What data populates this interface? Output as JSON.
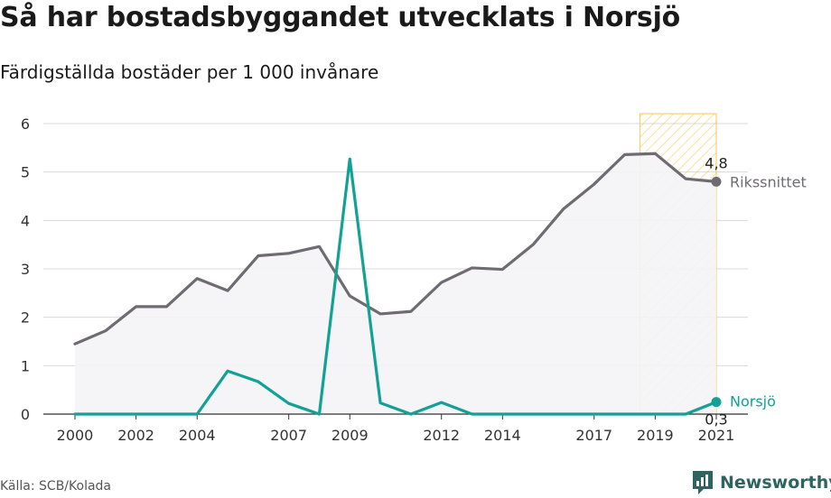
{
  "title": "Så har bostadsbyggandet utvecklats i Norsjö",
  "subtitle": "Färdigställda bostäder per 1 000 invånare",
  "source": "Källa: SCB/Kolada",
  "brand": {
    "name": "Newsworthy",
    "icon": "newsworthy-logo-icon"
  },
  "colors": {
    "riket": "#6e6b72",
    "norsjo": "#12a195",
    "highlight": "#f5c44a",
    "area": "#f4f4f6",
    "grid": "#d9d9d9"
  },
  "chart_data": {
    "type": "line",
    "ylim": [
      0,
      6
    ],
    "yticks": [
      0,
      1,
      2,
      3,
      4,
      5,
      6
    ],
    "xticks": [
      2000,
      2002,
      2004,
      2007,
      2009,
      2012,
      2014,
      2017,
      2019,
      2021
    ],
    "highlight_range": [
      2018.5,
      2021
    ],
    "x": [
      2000,
      2001,
      2002,
      2003,
      2004,
      2005,
      2006,
      2007,
      2008,
      2009,
      2010,
      2011,
      2012,
      2013,
      2014,
      2015,
      2016,
      2017,
      2018,
      2019,
      2020,
      2021
    ],
    "series": [
      {
        "name": "Rikssnittet",
        "end_label": "4,8",
        "values": [
          1.45,
          1.72,
          2.22,
          2.22,
          2.8,
          2.55,
          3.27,
          3.32,
          3.46,
          2.44,
          2.07,
          2.12,
          2.72,
          3.02,
          2.99,
          3.5,
          4.24,
          4.75,
          5.36,
          5.38,
          4.86,
          4.8
        ]
      },
      {
        "name": "Norsjö",
        "end_label": "0,3",
        "values": [
          0,
          0,
          0,
          0,
          0,
          0.89,
          0.67,
          0.22,
          0,
          5.27,
          0.23,
          0,
          0.24,
          0,
          0,
          0,
          0,
          0,
          0,
          0,
          0,
          0.25
        ]
      }
    ]
  }
}
